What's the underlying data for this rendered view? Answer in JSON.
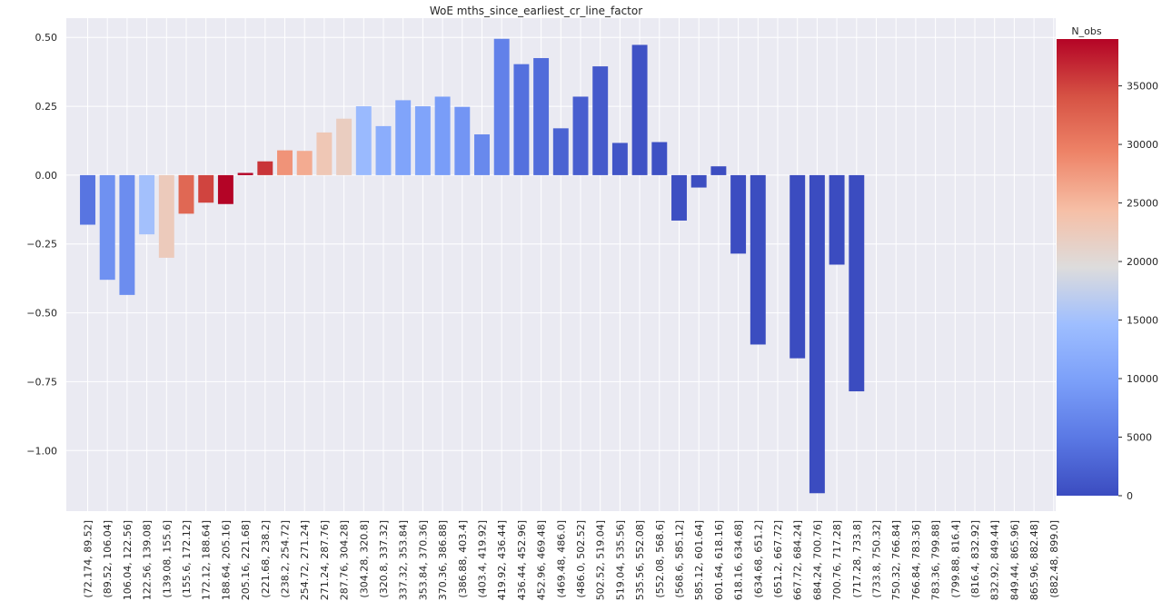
{
  "chart_data": {
    "type": "bar",
    "title": "WoE mths_since_earliest_cr_line_factor",
    "xlabel": "",
    "ylabel": "",
    "ylim": [
      -1.22,
      0.57
    ],
    "yticks": [
      0.5,
      0.25,
      0.0,
      -0.25,
      -0.5,
      -0.75,
      -1.0
    ],
    "ytick_labels": [
      "0.50",
      "0.25",
      "0.00",
      "−0.25",
      "−0.50",
      "−0.75",
      "−1.00"
    ],
    "grid": true,
    "colormap": "coolwarm",
    "categories": [
      "(72.174, 89.52]",
      "(89.52, 106.04]",
      "(106.04, 122.56]",
      "(122.56, 139.08]",
      "(139.08, 155.6]",
      "(155.6, 172.12]",
      "(172.12, 188.64]",
      "(188.64, 205.16]",
      "(205.16, 221.68]",
      "(221.68, 238.2]",
      "(238.2, 254.72]",
      "(254.72, 271.24]",
      "(271.24, 287.76]",
      "(287.76, 304.28]",
      "(304.28, 320.8]",
      "(320.8, 337.32]",
      "(337.32, 353.84]",
      "(353.84, 370.36]",
      "(370.36, 386.88]",
      "(386.88, 403.4]",
      "(403.4, 419.92]",
      "(419.92, 436.44]",
      "(436.44, 452.96]",
      "(452.96, 469.48]",
      "(469.48, 486.0]",
      "(486.0, 502.52]",
      "(502.52, 519.04]",
      "(519.04, 535.56]",
      "(535.56, 552.08]",
      "(552.08, 568.6]",
      "(568.6, 585.12]",
      "(585.12, 601.64]",
      "(601.64, 618.16]",
      "(618.16, 634.68]",
      "(634.68, 651.2]",
      "(651.2, 667.72]",
      "(667.72, 684.24]",
      "(684.24, 700.76]",
      "(700.76, 717.28]",
      "(717.28, 733.8]",
      "(733.8, 750.32]",
      "(750.32, 766.84]",
      "(766.84, 783.36]",
      "(783.36, 799.88]",
      "(799.88, 816.4]",
      "(816.4, 832.92]",
      "(832.92, 849.44]",
      "(849.44, 865.96]",
      "(865.96, 882.48]",
      "(882.48, 899.0]"
    ],
    "values": [
      -0.18,
      -0.38,
      -0.435,
      -0.215,
      -0.3,
      -0.14,
      -0.1,
      -0.105,
      0.008,
      0.05,
      0.09,
      0.088,
      0.155,
      0.205,
      0.25,
      0.178,
      0.272,
      0.25,
      0.285,
      0.248,
      0.148,
      0.495,
      0.403,
      0.425,
      0.17,
      0.285,
      0.395,
      0.117,
      0.473,
      0.12,
      -0.165,
      -0.045,
      0.032,
      -0.285,
      -0.615,
      0,
      -0.665,
      -1.155,
      -0.325,
      -0.785,
      null,
      null,
      null,
      null,
      null,
      null,
      null,
      null,
      null,
      null
    ],
    "n_obs": [
      4500,
      8000,
      7500,
      15000,
      22500,
      32000,
      35000,
      39000,
      39000,
      36000,
      28000,
      26000,
      23000,
      22000,
      14000,
      12000,
      10500,
      10500,
      9500,
      8500,
      7000,
      6000,
      4000,
      3500,
      2500,
      2000,
      1500,
      1000,
      700,
      500,
      300,
      200,
      150,
      100,
      60,
      0,
      40,
      20,
      15,
      10,
      null,
      null,
      null,
      null,
      null,
      null,
      null,
      null,
      null,
      null
    ],
    "colorbar": {
      "label": "N_obs",
      "min": 0,
      "max": 39000,
      "ticks": [
        0,
        5000,
        10000,
        15000,
        20000,
        25000,
        30000,
        35000
      ],
      "tick_labels": [
        "0",
        "5000",
        "10000",
        "15000",
        "20000",
        "25000",
        "30000",
        "35000"
      ]
    }
  }
}
